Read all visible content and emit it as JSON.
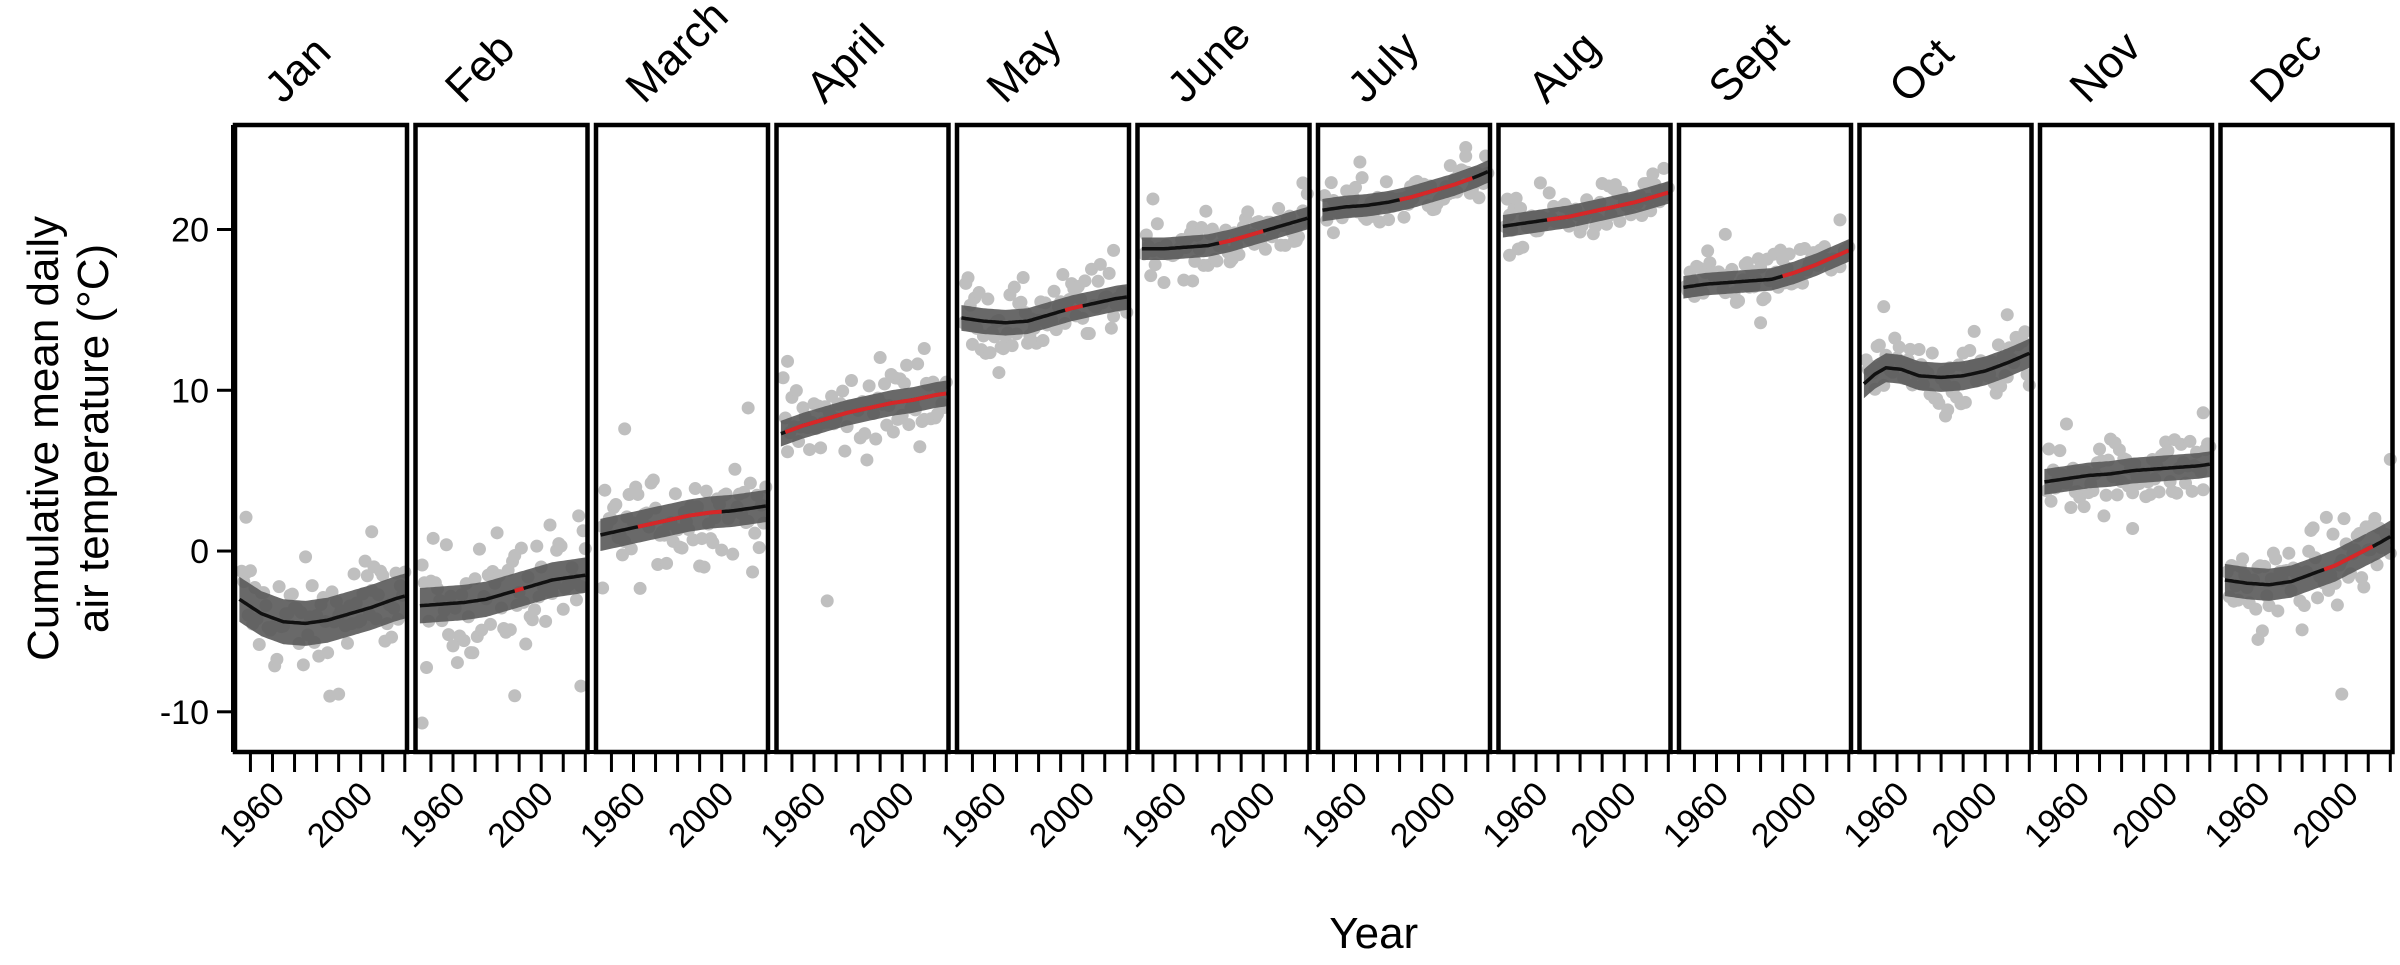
{
  "chart_data": {
    "type": "scatter",
    "ylabel_lines": [
      "Cumulative mean daily",
      "air temperature (°C)"
    ],
    "xlabel": "Year",
    "ylim": [
      -12.5,
      26.5
    ],
    "yticks": [
      -10,
      0,
      10,
      20
    ],
    "xlim": [
      1943,
      2021
    ],
    "xticks_minor": [
      1950,
      1960,
      1970,
      1980,
      1990,
      2000,
      2010,
      2020
    ],
    "xtick_labels": [
      1960,
      2000
    ],
    "colors": {
      "points": "#bfbfbf",
      "band": "#595959",
      "trend": "#111111",
      "significant": "#d62728"
    },
    "panels": [
      {
        "name": "Jan",
        "trend": [
          [
            1945,
            -3.0
          ],
          [
            1955,
            -3.9
          ],
          [
            1965,
            -4.4
          ],
          [
            1975,
            -4.5
          ],
          [
            1985,
            -4.3
          ],
          [
            1995,
            -3.9
          ],
          [
            2005,
            -3.5
          ],
          [
            2015,
            -3.0
          ],
          [
            2020,
            -2.8
          ]
        ],
        "red": [],
        "band": 1.4,
        "spread": 2.6,
        "outliers": [
          [
            1948,
            2.1
          ],
          [
            1990,
            -8.9
          ],
          [
            2005,
            1.2
          ]
        ]
      },
      {
        "name": "Feb",
        "trend": [
          [
            1945,
            -3.4
          ],
          [
            1955,
            -3.3
          ],
          [
            1965,
            -3.2
          ],
          [
            1975,
            -3.0
          ],
          [
            1985,
            -2.6
          ],
          [
            1995,
            -2.2
          ],
          [
            2005,
            -1.8
          ],
          [
            2015,
            -1.6
          ],
          [
            2020,
            -1.5
          ]
        ],
        "red": [
          [
            1988,
            1992
          ]
        ],
        "band": 1.1,
        "spread": 2.6,
        "outliers": [
          [
            1946,
            -10.7
          ],
          [
            2018,
            -8.4
          ],
          [
            1988,
            -9.0
          ]
        ]
      },
      {
        "name": "March",
        "trend": [
          [
            1945,
            1.0
          ],
          [
            1955,
            1.3
          ],
          [
            1965,
            1.6
          ],
          [
            1975,
            1.9
          ],
          [
            1985,
            2.2
          ],
          [
            1995,
            2.4
          ],
          [
            2005,
            2.5
          ],
          [
            2015,
            2.7
          ],
          [
            2020,
            2.8
          ]
        ],
        "red": [
          [
            1962,
            2000
          ]
        ],
        "band": 1.0,
        "spread": 2.2,
        "outliers": [
          [
            1956,
            7.6
          ],
          [
            2012,
            8.9
          ],
          [
            1946,
            -2.3
          ]
        ]
      },
      {
        "name": "April",
        "trend": [
          [
            1945,
            7.3
          ],
          [
            1955,
            7.8
          ],
          [
            1965,
            8.2
          ],
          [
            1975,
            8.6
          ],
          [
            1985,
            8.9
          ],
          [
            1995,
            9.2
          ],
          [
            2005,
            9.4
          ],
          [
            2015,
            9.7
          ],
          [
            2020,
            9.8
          ]
        ],
        "red": [
          [
            1947,
            2020
          ]
        ],
        "band": 0.8,
        "spread": 2.0,
        "outliers": [
          [
            1966,
            -3.1
          ],
          [
            1948,
            11.8
          ],
          [
            2010,
            12.6
          ]
        ]
      },
      {
        "name": "May",
        "trend": [
          [
            1945,
            14.5
          ],
          [
            1955,
            14.3
          ],
          [
            1965,
            14.2
          ],
          [
            1975,
            14.3
          ],
          [
            1985,
            14.7
          ],
          [
            1995,
            15.1
          ],
          [
            2005,
            15.4
          ],
          [
            2015,
            15.7
          ],
          [
            2020,
            15.8
          ]
        ],
        "red": [
          [
            1992,
            2000
          ]
        ],
        "band": 0.8,
        "spread": 1.6,
        "outliers": [
          [
            1962,
            11.1
          ],
          [
            2014,
            18.7
          ],
          [
            1948,
            17.0
          ]
        ]
      },
      {
        "name": "June",
        "trend": [
          [
            1945,
            18.8
          ],
          [
            1955,
            18.8
          ],
          [
            1965,
            18.9
          ],
          [
            1975,
            19.0
          ],
          [
            1985,
            19.3
          ],
          [
            1995,
            19.7
          ],
          [
            2005,
            20.1
          ],
          [
            2015,
            20.5
          ],
          [
            2020,
            20.7
          ]
        ],
        "red": [
          [
            1980,
            2000
          ]
        ],
        "band": 0.7,
        "spread": 1.2,
        "outliers": [
          [
            1950,
            21.9
          ],
          [
            2018,
            22.9
          ],
          [
            1968,
            16.8
          ]
        ]
      },
      {
        "name": "July",
        "trend": [
          [
            1945,
            21.2
          ],
          [
            1955,
            21.4
          ],
          [
            1965,
            21.5
          ],
          [
            1975,
            21.7
          ],
          [
            1985,
            22.0
          ],
          [
            1995,
            22.4
          ],
          [
            2005,
            22.8
          ],
          [
            2015,
            23.3
          ],
          [
            2020,
            23.6
          ]
        ],
        "red": [
          [
            1980,
            2013
          ]
        ],
        "band": 0.7,
        "spread": 1.1,
        "outliers": [
          [
            1962,
            24.2
          ],
          [
            2010,
            25.1
          ],
          [
            1950,
            19.8
          ]
        ]
      },
      {
        "name": "Aug",
        "trend": [
          [
            1945,
            20.2
          ],
          [
            1955,
            20.4
          ],
          [
            1965,
            20.6
          ],
          [
            1975,
            20.8
          ],
          [
            1985,
            21.1
          ],
          [
            1995,
            21.4
          ],
          [
            2005,
            21.7
          ],
          [
            2015,
            22.1
          ],
          [
            2020,
            22.3
          ]
        ],
        "red": [
          [
            1965,
            2020
          ]
        ],
        "band": 0.7,
        "spread": 1.1,
        "outliers": [
          [
            1948,
            18.4
          ],
          [
            2018,
            23.8
          ],
          [
            1962,
            22.9
          ]
        ]
      },
      {
        "name": "Sept",
        "trend": [
          [
            1945,
            16.4
          ],
          [
            1955,
            16.6
          ],
          [
            1965,
            16.7
          ],
          [
            1975,
            16.8
          ],
          [
            1985,
            16.9
          ],
          [
            1995,
            17.3
          ],
          [
            2005,
            17.8
          ],
          [
            2015,
            18.4
          ],
          [
            2020,
            18.7
          ]
        ],
        "red": [
          [
            1990,
            2020
          ]
        ],
        "band": 0.7,
        "spread": 1.2,
        "outliers": [
          [
            1964,
            19.7
          ],
          [
            1980,
            14.2
          ],
          [
            2016,
            20.6
          ]
        ]
      },
      {
        "name": "Oct",
        "trend": [
          [
            1945,
            10.4
          ],
          [
            1950,
            11.0
          ],
          [
            1955,
            11.4
          ],
          [
            1962,
            11.3
          ],
          [
            1970,
            10.9
          ],
          [
            1980,
            10.8
          ],
          [
            1990,
            10.9
          ],
          [
            2000,
            11.2
          ],
          [
            2010,
            11.7
          ],
          [
            2020,
            12.3
          ]
        ],
        "red": [],
        "band": 0.9,
        "spread": 1.5,
        "outliers": [
          [
            1954,
            15.2
          ],
          [
            2010,
            14.7
          ],
          [
            1982,
            8.4
          ]
        ]
      },
      {
        "name": "Nov",
        "trend": [
          [
            1945,
            4.3
          ],
          [
            1955,
            4.5
          ],
          [
            1965,
            4.7
          ],
          [
            1975,
            4.8
          ],
          [
            1985,
            5.0
          ],
          [
            1995,
            5.1
          ],
          [
            2005,
            5.2
          ],
          [
            2015,
            5.3
          ],
          [
            2020,
            5.4
          ]
        ],
        "red": [],
        "band": 0.8,
        "spread": 1.6,
        "outliers": [
          [
            1955,
            7.9
          ],
          [
            2017,
            8.6
          ],
          [
            1985,
            1.4
          ]
        ]
      },
      {
        "name": "Dec",
        "trend": [
          [
            1945,
            -1.8
          ],
          [
            1955,
            -2.0
          ],
          [
            1965,
            -2.1
          ],
          [
            1975,
            -1.9
          ],
          [
            1985,
            -1.4
          ],
          [
            1995,
            -0.9
          ],
          [
            2005,
            -0.2
          ],
          [
            2015,
            0.5
          ],
          [
            2020,
            0.9
          ]
        ],
        "red": [
          [
            1990,
            2012
          ]
        ],
        "band": 1.0,
        "spread": 2.0,
        "outliers": [
          [
            1998,
            -8.9
          ],
          [
            2020,
            5.7
          ],
          [
            1960,
            -5.5
          ]
        ]
      }
    ]
  }
}
